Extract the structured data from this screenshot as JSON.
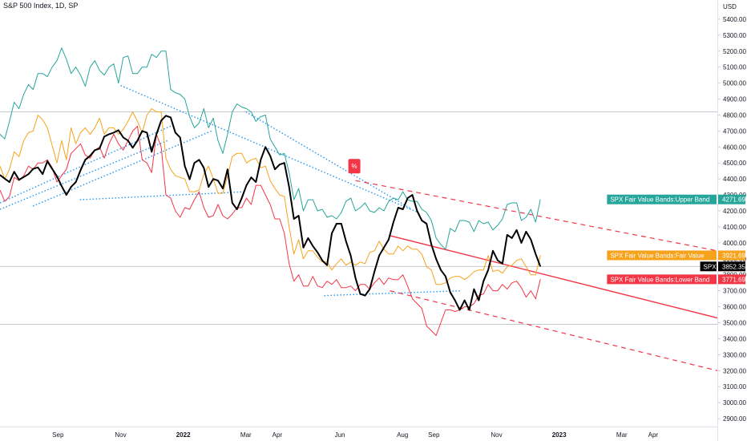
{
  "chart_title": "S&P 500 Index, 1D, SP",
  "currency": "USD",
  "colors": {
    "spx": "#000000",
    "upper": "#26a69a",
    "fair": "#f7a21b",
    "lower": "#f23645",
    "trend": "#2196f3",
    "grid": "#e0e3eb"
  },
  "chart_data": {
    "type": "line",
    "ylim": [
      2850,
      5520
    ],
    "y_ticks": [
      2900,
      3000,
      3100,
      3200,
      3300,
      3400,
      3500,
      3600,
      3700,
      3800,
      3900,
      4000,
      4100,
      4200,
      4300,
      4400,
      4500,
      4600,
      4700,
      4800,
      4900,
      5000,
      5100,
      5200,
      5300,
      5400
    ],
    "y_tick_labels": [
      "2900.00",
      "3000.00",
      "3100.00",
      "3200.00",
      "3300.00",
      "3400.00",
      "3500.00",
      "3600.00",
      "3700.00",
      "3800.00",
      "3900.00",
      "4000.00",
      "4100.00",
      "4200.00",
      "4300.00",
      "4400.00",
      "4500.00",
      "4600.00",
      "4700.00",
      "4800.00",
      "4900.00",
      "5000.00",
      "5100.00",
      "5200.00",
      "5300.00",
      "5400.00"
    ],
    "x_ticks": [
      {
        "label": "Sep",
        "t": 0.5,
        "bold": false
      },
      {
        "label": "Nov",
        "t": 2.5,
        "bold": false
      },
      {
        "label": "2022",
        "t": 4.5,
        "bold": true
      },
      {
        "label": "Mar",
        "t": 6.5,
        "bold": false
      },
      {
        "label": "Apr",
        "t": 7.5,
        "bold": false
      },
      {
        "label": "Jun",
        "t": 9.5,
        "bold": false
      },
      {
        "label": "Aug",
        "t": 11.5,
        "bold": false
      },
      {
        "label": "Sep",
        "t": 12.5,
        "bold": false
      },
      {
        "label": "Nov",
        "t": 14.5,
        "bold": false
      },
      {
        "label": "2023",
        "t": 16.5,
        "bold": true
      },
      {
        "label": "Mar",
        "t": 18.5,
        "bold": false
      },
      {
        "label": "Apr",
        "t": 19.5,
        "bold": false
      }
    ],
    "t_range": [
      -1.35,
      21.55
    ],
    "series": [
      {
        "key": "spx",
        "t0": -1.35,
        "t1": 15.9,
        "values": [
          4425,
          4402,
          4380,
          4445,
          4395,
          4412,
          4430,
          4463,
          4472,
          4430,
          4510,
          4463,
          4417,
          4355,
          4300,
          4350,
          4380,
          4455,
          4520,
          4545,
          4580,
          4590,
          4665,
          4680,
          4690,
          4705,
          4660,
          4640,
          4595,
          4640,
          4700,
          4690,
          4570,
          4680,
          4765,
          4796,
          4785,
          4690,
          4660,
          4480,
          4398,
          4500,
          4520,
          4470,
          4350,
          4400,
          4390,
          4340,
          4460,
          4250,
          4210,
          4280,
          4360,
          4410,
          4380,
          4520,
          4600,
          4545,
          4460,
          4490,
          4500,
          4350,
          4150,
          4170,
          3970,
          4030,
          3980,
          3940,
          3890,
          3860,
          4060,
          4120,
          4120,
          4010,
          3920,
          3780,
          3680,
          3670,
          3710,
          3820,
          3920,
          3970,
          4020,
          4130,
          4220,
          4210,
          4280,
          4300,
          4200,
          4140,
          4120,
          3990,
          3900,
          3830,
          3790,
          3690,
          3640,
          3580,
          3640,
          3580,
          3710,
          3640,
          3760,
          3830,
          3950,
          3890,
          3870,
          4050,
          4030,
          4080,
          4000,
          4070,
          4020,
          3930,
          3852
        ]
      },
      {
        "key": "upper",
        "t0": -1.35,
        "t1": 15.9,
        "values": [
          4680,
          4650,
          4760,
          4880,
          4840,
          4930,
          4990,
          4960,
          5060,
          5060,
          5040,
          5100,
          5140,
          5220,
          5150,
          5060,
          5100,
          5050,
          4980,
          5100,
          5140,
          5080,
          5050,
          5100,
          5120,
          5000,
          5160,
          5170,
          5060,
          5060,
          5100,
          5100,
          5180,
          5160,
          5200,
          5200,
          4960,
          4940,
          4930,
          4900,
          4790,
          4720,
          4750,
          4840,
          4720,
          4780,
          4640,
          4560,
          4680,
          4820,
          4870,
          4850,
          4840,
          4820,
          4760,
          4790,
          4800,
          4650,
          4600,
          4550,
          4560,
          4440,
          4270,
          4340,
          4200,
          4270,
          4270,
          4200,
          4210,
          4160,
          4170,
          4150,
          4190,
          4260,
          4280,
          4200,
          4220,
          4250,
          4200,
          4190,
          4220,
          4200,
          4260,
          4280,
          4270,
          4320,
          4270,
          4260,
          4260,
          4210,
          4190,
          4140,
          4030,
          3990,
          3960,
          4090,
          4070,
          4140,
          4140,
          4130,
          4070,
          4140,
          4120,
          4130,
          4080,
          4110,
          4150,
          4240,
          4250,
          4250,
          4140,
          4160,
          4210,
          4130,
          4272
        ]
      },
      {
        "key": "fair",
        "t0": -1.35,
        "t1": 15.9,
        "values": [
          4480,
          4400,
          4460,
          4570,
          4540,
          4640,
          4690,
          4700,
          4800,
          4770,
          4720,
          4610,
          4500,
          4640,
          4520,
          4720,
          4620,
          4690,
          4720,
          4680,
          4720,
          4780,
          4680,
          4720,
          4720,
          4680,
          4710,
          4760,
          4820,
          4760,
          4690,
          4800,
          4840,
          4820,
          4820,
          4530,
          4460,
          4420,
          4410,
          4400,
          4320,
          4320,
          4330,
          4430,
          4480,
          4400,
          4310,
          4310,
          4420,
          4540,
          4560,
          4560,
          4500,
          4520,
          4530,
          4470,
          4480,
          4390,
          4340,
          4300,
          4290,
          4100,
          3930,
          4020,
          3900,
          3950,
          3950,
          3910,
          3880,
          3880,
          3830,
          3870,
          3900,
          3860,
          3880,
          3860,
          3880,
          3870,
          3940,
          3950,
          4010,
          3960,
          3930,
          3930,
          3980,
          3950,
          3980,
          3960,
          3960,
          3930,
          3850,
          3830,
          3740,
          3740,
          3750,
          3780,
          3790,
          3790,
          3770,
          3790,
          3820,
          3830,
          3830,
          3920,
          3820,
          3830,
          3810,
          3850,
          3860,
          3890,
          3900,
          3850,
          3800,
          3800,
          3922
        ]
      },
      {
        "key": "lower",
        "t0": -1.35,
        "t1": 15.9,
        "values": [
          4330,
          4260,
          4290,
          4410,
          4390,
          4420,
          4480,
          4460,
          4500,
          4500,
          4520,
          4470,
          4380,
          4420,
          4460,
          4560,
          4590,
          4620,
          4550,
          4530,
          4580,
          4600,
          4530,
          4620,
          4680,
          4620,
          4580,
          4640,
          4700,
          4730,
          4520,
          4500,
          4440,
          4680,
          4600,
          4300,
          4280,
          4200,
          4160,
          4220,
          4210,
          4270,
          4320,
          4220,
          4160,
          4170,
          4240,
          4170,
          4150,
          4180,
          4220,
          4220,
          4280,
          4240,
          4360,
          4360,
          4300,
          4240,
          4150,
          4150,
          4060,
          3870,
          3760,
          3800,
          3730,
          3730,
          3790,
          3730,
          3720,
          3760,
          3740,
          3770,
          3720,
          3720,
          3730,
          3700,
          3740,
          3740,
          3710,
          3750,
          3780,
          3740,
          3780,
          3770,
          3770,
          3800,
          3730,
          3650,
          3620,
          3590,
          3480,
          3450,
          3420,
          3500,
          3580,
          3580,
          3570,
          3580,
          3600,
          3600,
          3620,
          3670,
          3680,
          3740,
          3700,
          3700,
          3740,
          3710,
          3750,
          3760,
          3720,
          3660,
          3700,
          3650,
          3772
        ]
      }
    ],
    "annotations": [
      {
        "key": "upper",
        "label": "SPX Fair Value Bands:Upper Band",
        "value": "4271.69",
        "y": 4271.69
      },
      {
        "key": "fair",
        "label": "SPX Fair Value Bands:Fair Value",
        "value": "3921.69",
        "y": 3921.69
      },
      {
        "key": "spx",
        "label": "SPX",
        "value": "3852.35",
        "y": 3852.35
      },
      {
        "key": "lower",
        "label": "SPX Fair Value Bands:Lower Band",
        "value": "3771.69",
        "y": 3771.69
      }
    ],
    "horizontal_lines": [
      3852.35,
      4820,
      3490
    ],
    "drawn_lines": [
      {
        "style": "blue-dotted",
        "from": [
          -1.35,
          4210
        ],
        "to": [
          4.0,
          4640
        ]
      },
      {
        "style": "blue-dotted",
        "from": [
          -1.35,
          4250
        ],
        "to": [
          4.2,
          4740
        ]
      },
      {
        "style": "blue-dotted",
        "from": [
          -0.3,
          4230
        ],
        "to": [
          5.4,
          4700
        ]
      },
      {
        "style": "blue-dotted",
        "from": [
          2.5,
          4985
        ],
        "to": [
          12.0,
          4190
        ]
      },
      {
        "style": "blue-dotted",
        "from": [
          6.5,
          4820
        ],
        "to": [
          11.8,
          4210
        ]
      },
      {
        "style": "blue-dotted",
        "from": [
          1.2,
          4270
        ],
        "to": [
          6.5,
          4320
        ]
      },
      {
        "style": "blue-dotted",
        "from": [
          9.0,
          3670
        ],
        "to": [
          13.4,
          3700
        ]
      },
      {
        "style": "red-solid",
        "from": [
          11.1,
          4045
        ],
        "to": [
          21.55,
          3530
        ]
      },
      {
        "style": "red-dashed",
        "from": [
          10.0,
          4390
        ],
        "to": [
          21.55,
          3950
        ]
      },
      {
        "style": "red-dashed",
        "from": [
          11.1,
          3700
        ],
        "to": [
          21.55,
          3200
        ]
      }
    ],
    "marker": {
      "label": "%",
      "t": 10.0,
      "y": 4480
    }
  }
}
